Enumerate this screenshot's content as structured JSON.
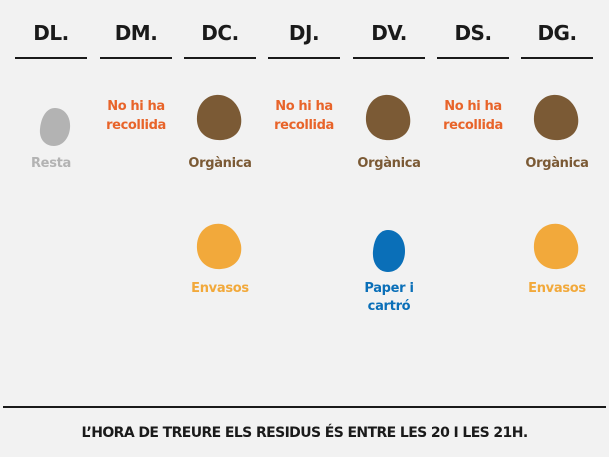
{
  "days": [
    {
      "label": "DL.",
      "items": [
        {
          "type": "rest",
          "label": "Resta"
        }
      ]
    },
    {
      "label": "DM.",
      "none": [
        "No hi ha",
        "recollida"
      ]
    },
    {
      "label": "DC.",
      "items": [
        {
          "type": "organic",
          "label": "Orgànica"
        },
        {
          "type": "packaging",
          "label": "Envasos"
        }
      ]
    },
    {
      "label": "DJ.",
      "none": [
        "No hi ha",
        "recollida"
      ]
    },
    {
      "label": "DV.",
      "items": [
        {
          "type": "organic",
          "label": "Orgànica"
        },
        {
          "type": "paper",
          "label": "Paper i",
          "label2": "cartró"
        }
      ]
    },
    {
      "label": "DS.",
      "none": [
        "No hi ha",
        "recollida"
      ]
    },
    {
      "label": "DG.",
      "items": [
        {
          "type": "organic",
          "label": "Orgànica"
        },
        {
          "type": "packaging",
          "label": "Envasos"
        }
      ]
    }
  ],
  "colors": {
    "rest": "#b3b3b3",
    "organic": "#7b5a35",
    "packaging": "#f2a93b",
    "paper": "#0a6fb8",
    "no_collection": "#e8642a",
    "text": "#1a1a1a",
    "background": "#f2f2f2"
  },
  "footer": "L’HORA DE TREURE ELS RESIDUS ÉS ENTRE LES 20 I LES 21H."
}
